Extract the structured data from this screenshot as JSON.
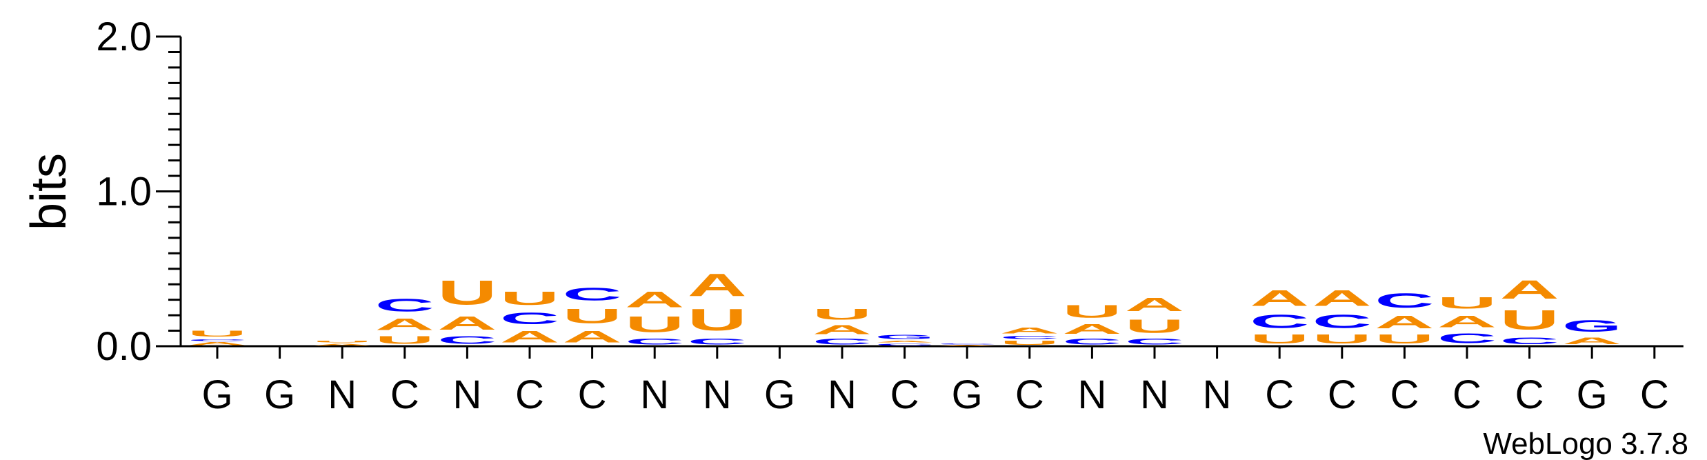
{
  "chart_data": {
    "type": "sequence-logo",
    "ylabel": "bits",
    "ylim": [
      0,
      2.0
    ],
    "yticks": [
      "0.0",
      "1.0",
      "2.0"
    ],
    "y_minor_step": 0.1,
    "credit": "WebLogo 3.7.8",
    "colors": {
      "A": "#f48a00",
      "U": "#f48a00",
      "C": "#0000ff",
      "G": "#0000ff"
    },
    "positions": [
      {
        "label": "G",
        "stack": [
          [
            "A",
            0.03
          ],
          [
            "C",
            0.02
          ],
          [
            "U",
            0.06
          ]
        ]
      },
      {
        "label": "G",
        "stack": []
      },
      {
        "label": "N",
        "stack": [
          [
            "A",
            0.02
          ],
          [
            "U",
            0.02
          ]
        ]
      },
      {
        "label": "C",
        "stack": [
          [
            "U",
            0.08
          ],
          [
            "A",
            0.12
          ],
          [
            "C",
            0.13
          ]
        ]
      },
      {
        "label": "N",
        "stack": [
          [
            "C",
            0.08
          ],
          [
            "A",
            0.14
          ],
          [
            "U",
            0.25
          ]
        ]
      },
      {
        "label": "C",
        "stack": [
          [
            "A",
            0.12
          ],
          [
            "C",
            0.12
          ],
          [
            "U",
            0.14
          ]
        ]
      },
      {
        "label": "C",
        "stack": [
          [
            "A",
            0.12
          ],
          [
            "U",
            0.15
          ],
          [
            "C",
            0.13
          ]
        ]
      },
      {
        "label": "N",
        "stack": [
          [
            "C",
            0.06
          ],
          [
            "U",
            0.16
          ],
          [
            "A",
            0.16
          ]
        ]
      },
      {
        "label": "N",
        "stack": [
          [
            "C",
            0.06
          ],
          [
            "U",
            0.22
          ],
          [
            "A",
            0.23
          ]
        ]
      },
      {
        "label": "G",
        "stack": []
      },
      {
        "label": "N",
        "stack": [
          [
            "C",
            0.06
          ],
          [
            "A",
            0.09
          ],
          [
            "U",
            0.11
          ]
        ]
      },
      {
        "label": "C",
        "stack": [
          [
            "C",
            0.02
          ],
          [
            "A",
            0.02
          ],
          [
            "G",
            0.04
          ]
        ]
      },
      {
        "label": "G",
        "stack": [
          [
            "A",
            0.01
          ],
          [
            "C",
            0.01
          ]
        ]
      },
      {
        "label": "C",
        "stack": [
          [
            "U",
            0.04
          ],
          [
            "C",
            0.03
          ],
          [
            "A",
            0.06
          ]
        ]
      },
      {
        "label": "N",
        "stack": [
          [
            "C",
            0.06
          ],
          [
            "A",
            0.1
          ],
          [
            "U",
            0.13
          ]
        ]
      },
      {
        "label": "N",
        "stack": [
          [
            "C",
            0.06
          ],
          [
            "U",
            0.14
          ],
          [
            "A",
            0.14
          ]
        ]
      },
      {
        "label": "N",
        "stack": []
      },
      {
        "label": "C",
        "stack": [
          [
            "U",
            0.09
          ],
          [
            "C",
            0.14
          ],
          [
            "A",
            0.16
          ]
        ]
      },
      {
        "label": "C",
        "stack": [
          [
            "U",
            0.09
          ],
          [
            "C",
            0.14
          ],
          [
            "A",
            0.16
          ]
        ]
      },
      {
        "label": "C",
        "stack": [
          [
            "U",
            0.09
          ],
          [
            "A",
            0.13
          ],
          [
            "C",
            0.15
          ]
        ]
      },
      {
        "label": "C",
        "stack": [
          [
            "C",
            0.1
          ],
          [
            "A",
            0.12
          ],
          [
            "U",
            0.12
          ]
        ]
      },
      {
        "label": "C",
        "stack": [
          [
            "C",
            0.07
          ],
          [
            "U",
            0.2
          ],
          [
            "A",
            0.19
          ]
        ]
      },
      {
        "label": "G",
        "stack": [
          [
            "A",
            0.07
          ],
          [
            "G",
            0.12
          ]
        ]
      },
      {
        "label": "C",
        "stack": []
      }
    ]
  }
}
